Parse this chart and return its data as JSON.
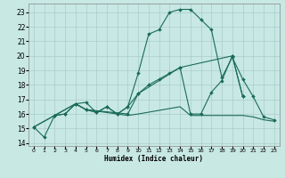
{
  "xlabel": "Humidex (Indice chaleur)",
  "background_color": "#c8e8e4",
  "grid_color": "#aaccca",
  "line_color": "#1a6b58",
  "xlim": [
    -0.5,
    23.5
  ],
  "ylim": [
    13.8,
    23.6
  ],
  "xticks": [
    0,
    1,
    2,
    3,
    4,
    5,
    6,
    7,
    8,
    9,
    10,
    11,
    12,
    13,
    14,
    15,
    16,
    17,
    18,
    19,
    20,
    21,
    22,
    23
  ],
  "yticks": [
    14,
    15,
    16,
    17,
    18,
    19,
    20,
    21,
    22,
    23
  ],
  "curve1_x": [
    0,
    1,
    2,
    3,
    4,
    5,
    6,
    7,
    8,
    9,
    10,
    11,
    12,
    13,
    14,
    15,
    16,
    17,
    18,
    19,
    20,
    21,
    22,
    23
  ],
  "curve1_y": [
    15.1,
    14.4,
    15.9,
    16.0,
    16.7,
    16.8,
    16.1,
    16.5,
    16.0,
    16.5,
    18.8,
    21.5,
    21.8,
    23.0,
    23.2,
    23.2,
    22.5,
    21.8,
    18.5,
    19.9,
    18.4,
    17.2,
    15.8,
    15.6
  ],
  "curve2_x": [
    0,
    2,
    4,
    5,
    9,
    10,
    14,
    19,
    20
  ],
  "curve2_y": [
    15.1,
    15.9,
    16.7,
    16.3,
    16.0,
    17.4,
    19.2,
    20.0,
    17.2
  ],
  "curve3_x": [
    0,
    2,
    4,
    5,
    9,
    10,
    14,
    15,
    16,
    17,
    18,
    19,
    20,
    21,
    22,
    23
  ],
  "curve3_y": [
    15.1,
    15.9,
    16.7,
    16.3,
    15.9,
    16.0,
    16.5,
    15.9,
    15.9,
    15.9,
    15.9,
    15.9,
    15.9,
    15.8,
    15.6,
    15.5
  ],
  "curve4_x": [
    2,
    3,
    4,
    5,
    6,
    7,
    8,
    9,
    10,
    11,
    12,
    13,
    14,
    15,
    16,
    17,
    18,
    19,
    20
  ],
  "curve4_y": [
    15.9,
    16.0,
    16.7,
    16.3,
    16.1,
    16.5,
    16.0,
    16.5,
    17.4,
    18.0,
    18.4,
    18.8,
    19.2,
    16.0,
    16.0,
    17.5,
    18.3,
    20.0,
    17.2
  ]
}
